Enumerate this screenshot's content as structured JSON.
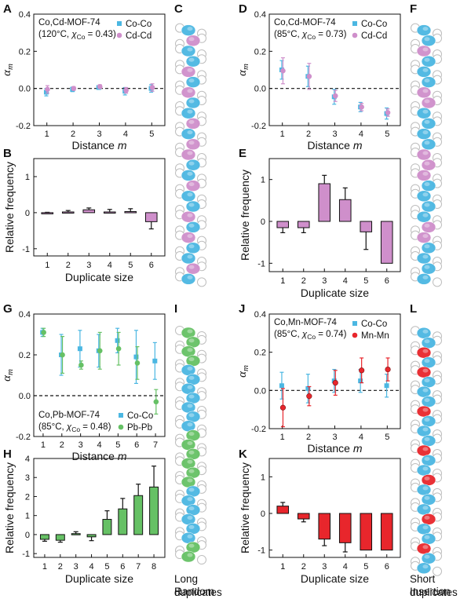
{
  "panel_letters": {
    "A": "A",
    "B": "B",
    "C": "C",
    "D": "D",
    "E": "E",
    "F": "F",
    "G": "G",
    "H": "H",
    "I": "I",
    "J": "J",
    "K": "K",
    "L": "L"
  },
  "captions": {
    "C": [
      "Random"
    ],
    "F": [
      "Short",
      "duplicates"
    ],
    "I": [
      "Long",
      "duplicates"
    ],
    "L": [
      "Insertion"
    ]
  },
  "colors": {
    "co": "#4BB7E2",
    "cd": "#CF8FCB",
    "pb": "#66C165",
    "mn": "#E8262C",
    "ring": "#BDBDBD"
  },
  "chart_data": [
    {
      "panel": "A",
      "type": "scatter",
      "annotation": [
        "Co,Cd-MOF-74",
        "(120°C, χCo = 0.43)"
      ],
      "xlabel": "Distance m",
      "ylabel": "αm",
      "xlim": [
        0.5,
        5.5
      ],
      "ylim": [
        -0.2,
        0.4
      ],
      "xticks": [
        "1",
        "2",
        "3",
        "4",
        "5"
      ],
      "yticks": [
        "-0.2",
        "0.0",
        "0.2",
        "0.4"
      ],
      "zero_line": true,
      "series": [
        {
          "name": "Co-Co",
          "marker": "square",
          "color": "#4BB7E2",
          "x": [
            1,
            2,
            3,
            4,
            5
          ],
          "y": [
            -0.02,
            -0.005,
            0.005,
            -0.015,
            0.0
          ],
          "err": [
            0.02,
            0.012,
            0.01,
            0.02,
            0.02
          ]
        },
        {
          "name": "Cd-Cd",
          "marker": "circle",
          "color": "#CF8FCB",
          "x": [
            1,
            2,
            3,
            4,
            5
          ],
          "y": [
            -0.005,
            0.0,
            0.01,
            -0.01,
            0.005
          ],
          "err": [
            0.02,
            0.01,
            0.01,
            0.015,
            0.02
          ]
        }
      ]
    },
    {
      "panel": "B",
      "type": "bar",
      "xlabel": "Duplicate size",
      "ylabel": "Relative frequency",
      "categories": [
        "1",
        "2",
        "3",
        "4",
        "5",
        "6"
      ],
      "values": [
        0.0,
        0.02,
        0.08,
        0.02,
        0.03,
        -0.25
      ],
      "err": [
        0.01,
        0.04,
        0.05,
        0.07,
        0.08,
        0.2
      ],
      "ylim": [
        -1.2,
        1.5
      ],
      "yticks": [
        "-1",
        "0",
        "1"
      ],
      "color": "#CF8FCB"
    },
    {
      "panel": "D",
      "type": "scatter",
      "annotation": [
        "Co,Cd-MOF-74",
        "(85°C, χCo = 0.73)"
      ],
      "xlabel": "Distance m",
      "ylabel": "αm",
      "xlim": [
        0.5,
        5.5
      ],
      "ylim": [
        -0.2,
        0.4
      ],
      "xticks": [
        "1",
        "2",
        "3",
        "4",
        "5"
      ],
      "yticks": [
        "-0.2",
        "0.0",
        "0.2",
        "0.4"
      ],
      "zero_line": true,
      "series": [
        {
          "name": "Co-Co",
          "marker": "square",
          "color": "#4BB7E2",
          "x": [
            1,
            2,
            3,
            4,
            5
          ],
          "y": [
            0.1,
            0.065,
            -0.045,
            -0.1,
            -0.135
          ],
          "err": [
            0.05,
            0.055,
            0.04,
            0.025,
            0.03
          ]
        },
        {
          "name": "Cd-Cd",
          "marker": "circle",
          "color": "#CF8FCB",
          "x": [
            1,
            2,
            3,
            4,
            5
          ],
          "y": [
            0.095,
            0.065,
            -0.04,
            -0.1,
            -0.13
          ],
          "err": [
            0.07,
            0.07,
            0.03,
            0.02,
            0.02
          ]
        }
      ]
    },
    {
      "panel": "E",
      "type": "bar",
      "xlabel": "Duplicate size",
      "ylabel": "Relative frequency",
      "categories": [
        "1",
        "2",
        "3",
        "4",
        "5",
        "6"
      ],
      "values": [
        -0.15,
        -0.15,
        0.9,
        0.52,
        -0.25,
        -1.0
      ],
      "err": [
        0.12,
        0.12,
        0.2,
        0.28,
        0.42,
        0.0
      ],
      "ylim": [
        -1.2,
        1.5
      ],
      "yticks": [
        "-1",
        "0",
        "1"
      ],
      "color": "#CF8FCB"
    },
    {
      "panel": "G",
      "type": "scatter",
      "annotation": [
        "Co,Pb-MOF-74",
        "(85°C, χCo = 0.48)"
      ],
      "xlabel": "Distance m",
      "ylabel": "αm",
      "xlim": [
        0.5,
        7.5
      ],
      "ylim": [
        -0.2,
        0.4
      ],
      "xticks": [
        "1",
        "2",
        "3",
        "4",
        "5",
        "6",
        "7"
      ],
      "yticks": [
        "-0.2",
        "0.0",
        "0.2",
        "0.4"
      ],
      "zero_line": true,
      "series": [
        {
          "name": "Co-Co",
          "marker": "square",
          "color": "#4BB7E2",
          "x": [
            1,
            2,
            3,
            4,
            5,
            6,
            7
          ],
          "y": [
            0.31,
            0.2,
            0.23,
            0.22,
            0.27,
            0.19,
            0.17
          ],
          "err": [
            0.02,
            0.1,
            0.09,
            0.08,
            0.06,
            0.13,
            0.09
          ]
        },
        {
          "name": "Pb-Pb",
          "marker": "circle",
          "color": "#66C165",
          "x": [
            1,
            2,
            3,
            4,
            5,
            6,
            7
          ],
          "y": [
            0.31,
            0.2,
            0.15,
            0.22,
            0.23,
            0.16,
            -0.03
          ],
          "err": [
            0.02,
            0.09,
            0.02,
            0.09,
            0.08,
            0.08,
            0.06
          ]
        }
      ]
    },
    {
      "panel": "H",
      "type": "bar",
      "xlabel": "Duplicate size",
      "ylabel": "Relative frequency",
      "categories": [
        "1",
        "2",
        "3",
        "4",
        "5",
        "6",
        "7",
        "8"
      ],
      "values": [
        -0.25,
        -0.3,
        0.05,
        -0.12,
        0.8,
        1.35,
        2.05,
        2.5
      ],
      "err": [
        0.1,
        0.1,
        0.1,
        0.2,
        0.45,
        0.55,
        0.6,
        1.1
      ],
      "ylim": [
        -1.2,
        4.0
      ],
      "yticks": [
        "-1",
        "0",
        "1",
        "2",
        "3",
        "4"
      ],
      "color": "#66C165"
    },
    {
      "panel": "J",
      "type": "scatter",
      "annotation": [
        "Co,Mn-MOF-74",
        "(85°C, χCo = 0.74)"
      ],
      "xlabel": "Distance m",
      "ylabel": "αm",
      "xlim": [
        0.5,
        5.5
      ],
      "ylim": [
        -0.2,
        0.4
      ],
      "xticks": [
        "1",
        "2",
        "3",
        "4",
        "5"
      ],
      "yticks": [
        "-0.2",
        "0.0",
        "0.2",
        "0.4"
      ],
      "zero_line": true,
      "series": [
        {
          "name": "Co-Co",
          "marker": "square",
          "color": "#4BB7E2",
          "x": [
            1,
            2,
            3,
            4,
            5
          ],
          "y": [
            0.025,
            0.01,
            0.05,
            0.05,
            0.025
          ],
          "err": [
            0.07,
            0.075,
            0.06,
            0.06,
            0.06
          ]
        },
        {
          "name": "Mn-Mn",
          "marker": "circle",
          "color": "#E8262C",
          "x": [
            1,
            2,
            3,
            4,
            5
          ],
          "y": [
            -0.09,
            -0.03,
            0.04,
            0.105,
            0.11
          ],
          "err": [
            0.1,
            0.05,
            0.065,
            0.065,
            0.06
          ]
        }
      ]
    },
    {
      "panel": "K",
      "type": "bar",
      "xlabel": "Duplicate size",
      "ylabel": "Relative frequency",
      "categories": [
        "1",
        "2",
        "3",
        "4",
        "5",
        "6"
      ],
      "values": [
        0.2,
        -0.15,
        -0.7,
        -0.8,
        -1.0,
        -1.0
      ],
      "err": [
        0.1,
        0.08,
        0.18,
        0.25,
        0.0,
        0.0
      ],
      "ylim": [
        -1.2,
        1.5
      ],
      "yticks": [
        "-1",
        "0",
        "1"
      ],
      "color": "#E8262C"
    }
  ],
  "chains": [
    {
      "panel": "C",
      "highlight": "#CF8FCB",
      "pattern": [
        0,
        1,
        0,
        0,
        1,
        0,
        1,
        0,
        0,
        1,
        0,
        1,
        1,
        0,
        0,
        1,
        0,
        0,
        1,
        0,
        1,
        0,
        0,
        1,
        0
      ]
    },
    {
      "panel": "F",
      "highlight": "#CF8FCB",
      "pattern": [
        0,
        0,
        1,
        0,
        0,
        0,
        1,
        1,
        0,
        0,
        0,
        0,
        1,
        1,
        1,
        0,
        0,
        0,
        0,
        1,
        1,
        0,
        0,
        0,
        0
      ]
    },
    {
      "panel": "I",
      "highlight": "#66C165",
      "pattern": [
        1,
        1,
        1,
        1,
        0,
        0,
        0,
        0,
        0,
        0,
        0,
        1,
        1,
        1,
        1,
        1,
        1,
        0,
        0,
        0,
        0,
        0,
        0,
        1,
        1
      ]
    },
    {
      "panel": "L",
      "highlight": "#E8262C",
      "pattern": [
        0,
        0,
        1,
        0,
        1,
        0,
        0,
        0,
        1,
        0,
        0,
        0,
        1,
        0,
        0,
        1,
        0,
        0,
        0,
        1,
        0,
        0,
        1,
        0,
        0
      ]
    }
  ]
}
